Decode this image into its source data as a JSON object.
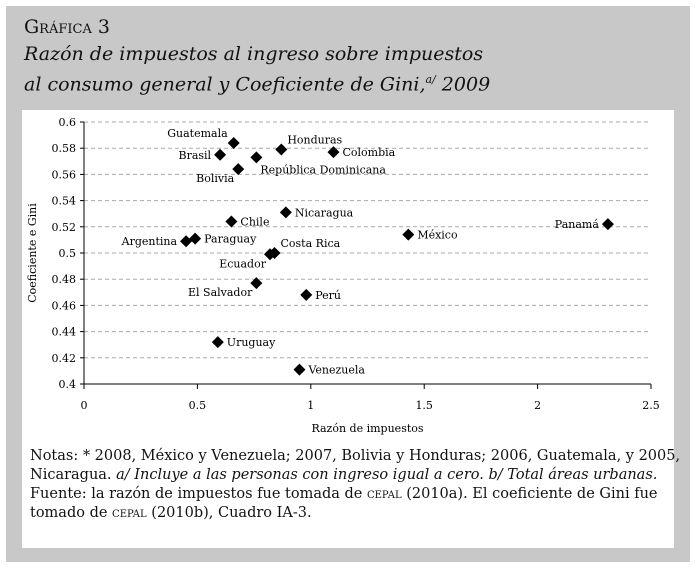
{
  "title": {
    "label": "Gráfica 3",
    "line1": "Razón de impuestos al ingreso sobre impuestos",
    "line2": "al consumo general y Coeficiente de Gini,",
    "sup": "a/",
    "year": " 2009"
  },
  "chart_data": {
    "type": "scatter",
    "xlabel": "Razón de impuestos",
    "ylabel": "Coeficiente e Gini",
    "xlim": [
      0,
      2.5
    ],
    "ylim": [
      0.4,
      0.6
    ],
    "xticks": [
      "0",
      "0.5",
      "1",
      "1.5",
      "2",
      "2.5"
    ],
    "yticks": [
      "0.4",
      "0.42",
      "0.44",
      "0.46",
      "0.48",
      "0.5",
      "0.52",
      "0.54",
      "0.56",
      "0.58",
      "0.6"
    ],
    "grid": "horizontal dashed",
    "points": [
      {
        "label": "Guatemala",
        "x": 0.66,
        "y": 0.584,
        "pos": "tl"
      },
      {
        "label": "Brasil",
        "x": 0.6,
        "y": 0.575,
        "pos": "l"
      },
      {
        "label": "Honduras",
        "x": 0.87,
        "y": 0.579,
        "pos": "tr"
      },
      {
        "label": "Colombia",
        "x": 1.1,
        "y": 0.577,
        "pos": "br"
      },
      {
        "label": "República Dominicana",
        "x": 0.76,
        "y": 0.573,
        "pos": "br"
      },
      {
        "label": "Bolivia",
        "x": 0.68,
        "y": 0.564,
        "pos": "bl"
      },
      {
        "label": "Nicaragua",
        "x": 0.89,
        "y": 0.531,
        "pos": "r"
      },
      {
        "label": "Chile",
        "x": 0.65,
        "y": 0.524,
        "pos": "r"
      },
      {
        "label": "Argentina",
        "x": 0.45,
        "y": 0.509,
        "pos": "l"
      },
      {
        "label": "Paraguay",
        "x": 0.49,
        "y": 0.511,
        "pos": "r"
      },
      {
        "label": "Costa Rica",
        "x": 0.84,
        "y": 0.5,
        "pos": "tr"
      },
      {
        "label": "Ecuador",
        "x": 0.82,
        "y": 0.499,
        "pos": "bl"
      },
      {
        "label": "El Salvador",
        "x": 0.76,
        "y": 0.477,
        "pos": "bl"
      },
      {
        "label": "Perú",
        "x": 0.98,
        "y": 0.468,
        "pos": "r"
      },
      {
        "label": "Uruguay",
        "x": 0.59,
        "y": 0.432,
        "pos": "r"
      },
      {
        "label": "Venezuela",
        "x": 0.95,
        "y": 0.411,
        "pos": "r"
      },
      {
        "label": "México",
        "x": 1.43,
        "y": 0.514,
        "pos": "r"
      },
      {
        "label": "Panamá",
        "x": 2.31,
        "y": 0.522,
        "pos": "l"
      }
    ]
  },
  "notes": {
    "n1": "Notas: * 2008, México y Venezuela; 2007, Bolivia y Honduras; 2006, Guatemala, y 2005, Nicaragua. ",
    "n2": "a/ Incluye a las personas con ingreso igual a cero. ",
    "n3": "b/ Total áreas urbanas.",
    "n4": "Fuente: la razón de impuestos fue tomada de ",
    "cepal1": "cepal",
    "n5": " (2010a). El coeficiente de Gini fue tomado de ",
    "cepal2": "cepal",
    "n6": " (2010b), Cuadro IA-3."
  }
}
